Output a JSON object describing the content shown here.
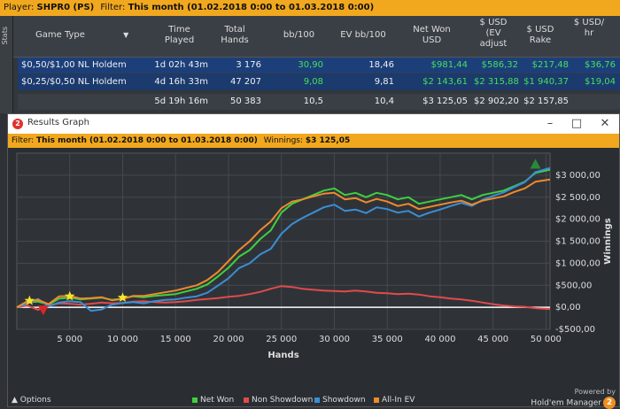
{
  "topbar": {
    "player_label": "Player:",
    "player": "SHPR0 (PS)",
    "filter_label": "Filter:",
    "filter": "This month (01.02.2018 0:00 to 01.03.2018 0:00)"
  },
  "sidetab": {
    "label": "Stats"
  },
  "stats": {
    "columns": [
      "Game Type",
      "Time Played",
      "Total Hands",
      "bb/100",
      "EV bb/100",
      "Net Won USD",
      "$ USD (EV adjust",
      "$ USD Rake",
      "$ USD/ hr"
    ],
    "rows": [
      {
        "game": "$0,50/$1,00 NL Holdem",
        "time": "1d 02h 43m",
        "hands": "3 176",
        "bb100": "30,90",
        "evbb100": "18,46",
        "net": "$981,44",
        "ev": "$586,32",
        "rake": "$217,48",
        "hr": "$36,76"
      },
      {
        "game": "$0,25/$0,50 NL Holdem",
        "time": "4d 16h 33m",
        "hands": "47 207",
        "bb100": "9,08",
        "evbb100": "9,81",
        "net": "$2 143,61",
        "ev": "$2 315,88",
        "rake": "$1 940,37",
        "hr": "$19,04"
      }
    ],
    "total": {
      "time": "5d 19h 16m",
      "hands": "50 383",
      "bb100": "10,5",
      "evbb100": "10,4",
      "net": "$3 125,05",
      "ev": "$2 902,20",
      "rake": "$2 157,85"
    }
  },
  "graph_window": {
    "title": "Results Graph",
    "filter_label": "Filter:",
    "filter": "This month (01.02.2018 0:00 to 01.03.2018 0:00)",
    "winnings_label": "Winnings:",
    "winnings": "$3 125,05",
    "options_label": "Options",
    "brand_powered": "Powered by",
    "brand_name": "Hold'em Manager",
    "brand_version": "2"
  },
  "chart_data": {
    "type": "line",
    "xlabel": "Hands",
    "ylabel": "Winnings",
    "xlim": [
      0,
      50383
    ],
    "ylim": [
      -500,
      3500
    ],
    "x_ticks": [
      5000,
      10000,
      15000,
      20000,
      25000,
      30000,
      35000,
      40000,
      45000,
      50000
    ],
    "x_tick_labels": [
      "5 000",
      "10 000",
      "15 000",
      "20 000",
      "25 000",
      "30 000",
      "35 000",
      "40 000",
      "45 000",
      "50 000"
    ],
    "y_ticks": [
      -500,
      0,
      500,
      1000,
      1500,
      2000,
      2500,
      3000
    ],
    "y_tick_labels": [
      "-$500,00",
      "$0,00",
      "$500,00",
      "$1 000,00",
      "$1 500,00",
      "$2 000,00",
      "$2 500,00",
      "$3 000,00"
    ],
    "x": [
      0,
      1000,
      2000,
      3000,
      4000,
      5000,
      6000,
      7000,
      8000,
      9000,
      10000,
      11000,
      12000,
      13000,
      14000,
      15000,
      16000,
      17000,
      18000,
      19000,
      20000,
      21000,
      22000,
      23000,
      24000,
      25000,
      26000,
      27000,
      28000,
      29000,
      30000,
      31000,
      32000,
      33000,
      34000,
      35000,
      36000,
      37000,
      38000,
      39000,
      40000,
      41000,
      42000,
      43000,
      44000,
      45000,
      46000,
      47000,
      48000,
      49000,
      50383
    ],
    "series": [
      {
        "name": "Net Won",
        "color": "#3fd03f",
        "values": [
          0,
          120,
          130,
          60,
          200,
          220,
          180,
          200,
          220,
          170,
          200,
          250,
          230,
          260,
          280,
          300,
          360,
          420,
          520,
          700,
          900,
          1150,
          1300,
          1550,
          1750,
          2150,
          2350,
          2450,
          2550,
          2650,
          2700,
          2550,
          2600,
          2500,
          2600,
          2550,
          2450,
          2500,
          2350,
          2400,
          2450,
          2500,
          2550,
          2450,
          2550,
          2600,
          2650,
          2750,
          2850,
          3050,
          3125
        ]
      },
      {
        "name": "Non Showdown",
        "color": "#e04b4b",
        "values": [
          0,
          40,
          -60,
          40,
          90,
          80,
          60,
          80,
          110,
          90,
          100,
          130,
          140,
          120,
          110,
          120,
          140,
          170,
          190,
          210,
          240,
          260,
          300,
          350,
          420,
          480,
          460,
          420,
          400,
          380,
          370,
          360,
          380,
          360,
          330,
          320,
          300,
          310,
          290,
          250,
          230,
          200,
          180,
          150,
          110,
          70,
          40,
          20,
          10,
          -20,
          -40
        ]
      },
      {
        "name": "Showdown",
        "color": "#3a8ed6",
        "values": [
          0,
          80,
          190,
          20,
          110,
          140,
          120,
          -80,
          -50,
          60,
          100,
          120,
          90,
          140,
          170,
          180,
          220,
          250,
          330,
          490,
          660,
          890,
          1000,
          1200,
          1330,
          1670,
          1890,
          2030,
          2150,
          2270,
          2330,
          2190,
          2220,
          2140,
          2270,
          2230,
          2150,
          2190,
          2060,
          2150,
          2220,
          2300,
          2370,
          2300,
          2440,
          2530,
          2610,
          2730,
          2840,
          3070,
          3165
        ]
      },
      {
        "name": "All-In EV",
        "color": "#f08a2a",
        "values": [
          0,
          140,
          170,
          70,
          250,
          260,
          200,
          210,
          230,
          160,
          190,
          260,
          260,
          300,
          340,
          380,
          440,
          500,
          620,
          800,
          1050,
          1300,
          1500,
          1750,
          1950,
          2250,
          2400,
          2450,
          2520,
          2580,
          2600,
          2450,
          2480,
          2380,
          2460,
          2400,
          2300,
          2350,
          2230,
          2280,
          2330,
          2380,
          2420,
          2330,
          2420,
          2470,
          2520,
          2620,
          2700,
          2850,
          2902
        ]
      }
    ],
    "markers": [
      {
        "type": "star",
        "color": "#f7e32a",
        "x": 1200,
        "y": 150
      },
      {
        "type": "star",
        "color": "#f7e32a",
        "x": 5000,
        "y": 250
      },
      {
        "type": "star",
        "color": "#f7e32a",
        "x": 10000,
        "y": 220
      },
      {
        "type": "triangle-down",
        "color": "#d62828",
        "x": 2500,
        "y": -60
      },
      {
        "type": "triangle-up",
        "color": "#2a8a3a",
        "x": 49000,
        "y": 3250
      }
    ],
    "legend_position": "bottom-center",
    "grid": true
  }
}
